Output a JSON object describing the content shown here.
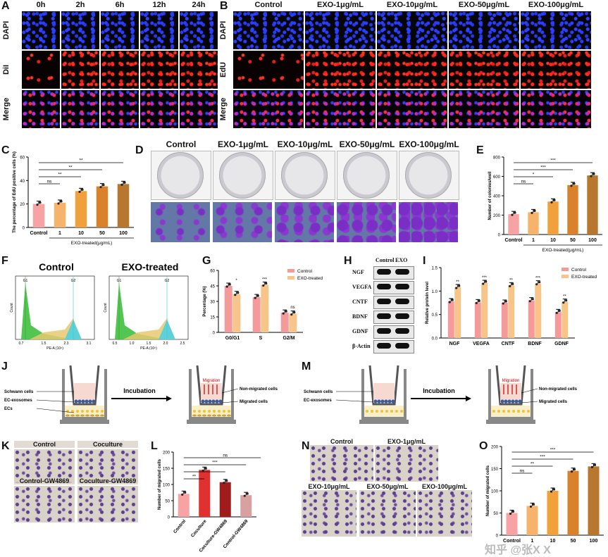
{
  "panels": {
    "A": {
      "letter": "A",
      "cols": [
        "0h",
        "2h",
        "6h",
        "12h",
        "24h"
      ],
      "rows": [
        "DAPI",
        "DiI",
        "Merge"
      ]
    },
    "B": {
      "letter": "B",
      "cols": [
        "Control",
        "EXO-1μg/mL",
        "EXO-10μg/mL",
        "EXO-50μg/mL",
        "EXO-100μg/mL"
      ],
      "rows": [
        "DAPI",
        "EdU",
        "Merge"
      ]
    },
    "C": {
      "letter": "C"
    },
    "D": {
      "letter": "D",
      "cols": [
        "Control",
        "EXO-1μg/mL",
        "EXO-10μg/mL",
        "EXO-50μg/mL",
        "EXO-100μg/mL"
      ]
    },
    "E": {
      "letter": "E"
    },
    "F": {
      "letter": "F",
      "titles": [
        "Control",
        "EXO-treated"
      ],
      "peaks": [
        "G1",
        "G2"
      ],
      "xaxis": "PE-A (10⁶)",
      "yaxis": "Count",
      "xticks": [
        "0.7",
        "1.5",
        "2.3",
        "3.1"
      ],
      "xticks2": [
        "0.5",
        "1.0",
        "1.5",
        "2.0",
        "2.5"
      ]
    },
    "G": {
      "letter": "G"
    },
    "H": {
      "letter": "H",
      "cols": [
        "Control",
        "EXO"
      ],
      "rows": [
        "NGF",
        "VEGFA",
        "CNTF",
        "BDNF",
        "GDNF",
        "β-Actin"
      ]
    },
    "I": {
      "letter": "I"
    },
    "J": {
      "letter": "J",
      "labels": [
        "Schwann cells",
        "EC-exosomes",
        "ECs"
      ],
      "arrow": "Incubation",
      "right_labels": [
        "Non-migrated cells",
        "Migrated cells"
      ],
      "migration": "Migration"
    },
    "K": {
      "letter": "K",
      "labels": [
        "Control",
        "Coculture",
        "Control-GW4869",
        "Coculture-GW4869"
      ]
    },
    "L": {
      "letter": "L"
    },
    "M": {
      "letter": "M",
      "labels": [
        "Schwann cells",
        "EC-exosomes"
      ],
      "arrow": "Incubation",
      "right_labels": [
        "Non-migrated cells",
        "Migrated cells"
      ],
      "migration": "Migration"
    },
    "N": {
      "letter": "N",
      "labels": [
        "Control",
        "EXO-1μg/mL",
        "EXO-10μg/mL",
        "EXO-50μg/mL",
        "EXO-100μg/mL"
      ]
    },
    "O": {
      "letter": "O"
    }
  },
  "watermark": "知乎 @张X X",
  "chart_data": [
    {
      "panel": "C",
      "type": "bar",
      "categories": [
        "Control",
        "1",
        "10",
        "50",
        "100"
      ],
      "values": [
        20,
        21,
        31,
        35,
        37
      ],
      "ylabel": "The percentage of EdU positive cells (%)",
      "xlabel": "EXO-treated(μg/mL)",
      "ylim": [
        0,
        60
      ],
      "yticks": [
        "0",
        "20",
        "40",
        "60"
      ],
      "colors": [
        "#f7a3a3",
        "#f7b36b",
        "#f0a13b",
        "#d9822b",
        "#b7772f"
      ],
      "sig": [
        "ns",
        "**",
        "**",
        "**"
      ]
    },
    {
      "panel": "E",
      "type": "bar",
      "categories": [
        "Control",
        "1",
        "10",
        "50",
        "100"
      ],
      "values": [
        210,
        230,
        340,
        510,
        610
      ],
      "ylabel": "Number of colonies/well",
      "xlabel": "EXO-treated(μg/mL)",
      "ylim": [
        0,
        800
      ],
      "yticks": [
        "0",
        "200",
        "400",
        "600",
        "800"
      ],
      "colors": [
        "#f7a3a3",
        "#f7b36b",
        "#f0a13b",
        "#d9822b",
        "#b7772f"
      ],
      "sig": [
        "ns",
        "*",
        "***",
        "***"
      ]
    },
    {
      "panel": "G",
      "type": "bar",
      "categories": [
        "G0/G1",
        "S",
        "G2/M"
      ],
      "series": [
        {
          "name": "Control",
          "values": [
            45,
            34,
            19
          ]
        },
        {
          "name": "EXO-treated",
          "values": [
            37,
            46,
            18
          ]
        }
      ],
      "ylabel": "Percentage (%)",
      "ylim": [
        0,
        60
      ],
      "yticks": [
        "0",
        "15",
        "30",
        "45",
        "60"
      ],
      "colors": [
        "#f49a9a",
        "#f7c58a"
      ],
      "sig": [
        "*",
        "***",
        "ns"
      ]
    },
    {
      "panel": "I",
      "type": "bar",
      "categories": [
        "NGF",
        "VEGFA",
        "CNTF",
        "BDNF",
        "GDNF"
      ],
      "series": [
        {
          "name": "Control",
          "values": [
            0.78,
            0.76,
            0.75,
            0.8,
            0.55
          ]
        },
        {
          "name": "EXO-treated",
          "values": [
            1.08,
            1.17,
            1.12,
            1.16,
            0.77
          ]
        }
      ],
      "ylabel": "Relative protein level",
      "ylim": [
        0,
        1.5
      ],
      "yticks": [
        "0.0",
        "0.5",
        "1.0",
        "1.5"
      ],
      "colors": [
        "#f49a9a",
        "#f7c58a"
      ],
      "sig": [
        "**",
        "***",
        "**",
        "***",
        "**"
      ]
    },
    {
      "panel": "L",
      "type": "bar",
      "categories": [
        "Control",
        "Coculture",
        "Coculture-GW4869",
        "Control-GW4869"
      ],
      "values": [
        71,
        145,
        107,
        67
      ],
      "ylabel": "Number of migrated cells",
      "ylim": [
        0,
        200
      ],
      "yticks": [
        "0",
        "50",
        "100",
        "150",
        "200"
      ],
      "colors": [
        "#f7a3a3",
        "#e03030",
        "#a01c1c",
        "#d9a0a0"
      ],
      "sig": [
        "**",
        "*",
        "***",
        "ns"
      ]
    },
    {
      "panel": "O",
      "type": "bar",
      "categories": [
        "Control",
        "1",
        "10",
        "50",
        "100"
      ],
      "values": [
        50,
        66,
        100,
        145,
        155
      ],
      "ylabel": "Number of migrated cells",
      "ylim": [
        0,
        200
      ],
      "yticks": [
        "0",
        "50",
        "100",
        "150",
        "200"
      ],
      "colors": [
        "#f7a3a3",
        "#f7b36b",
        "#f0a13b",
        "#d9822b",
        "#b7772f"
      ],
      "sig": [
        "ns",
        "**",
        "***",
        "***"
      ]
    }
  ]
}
